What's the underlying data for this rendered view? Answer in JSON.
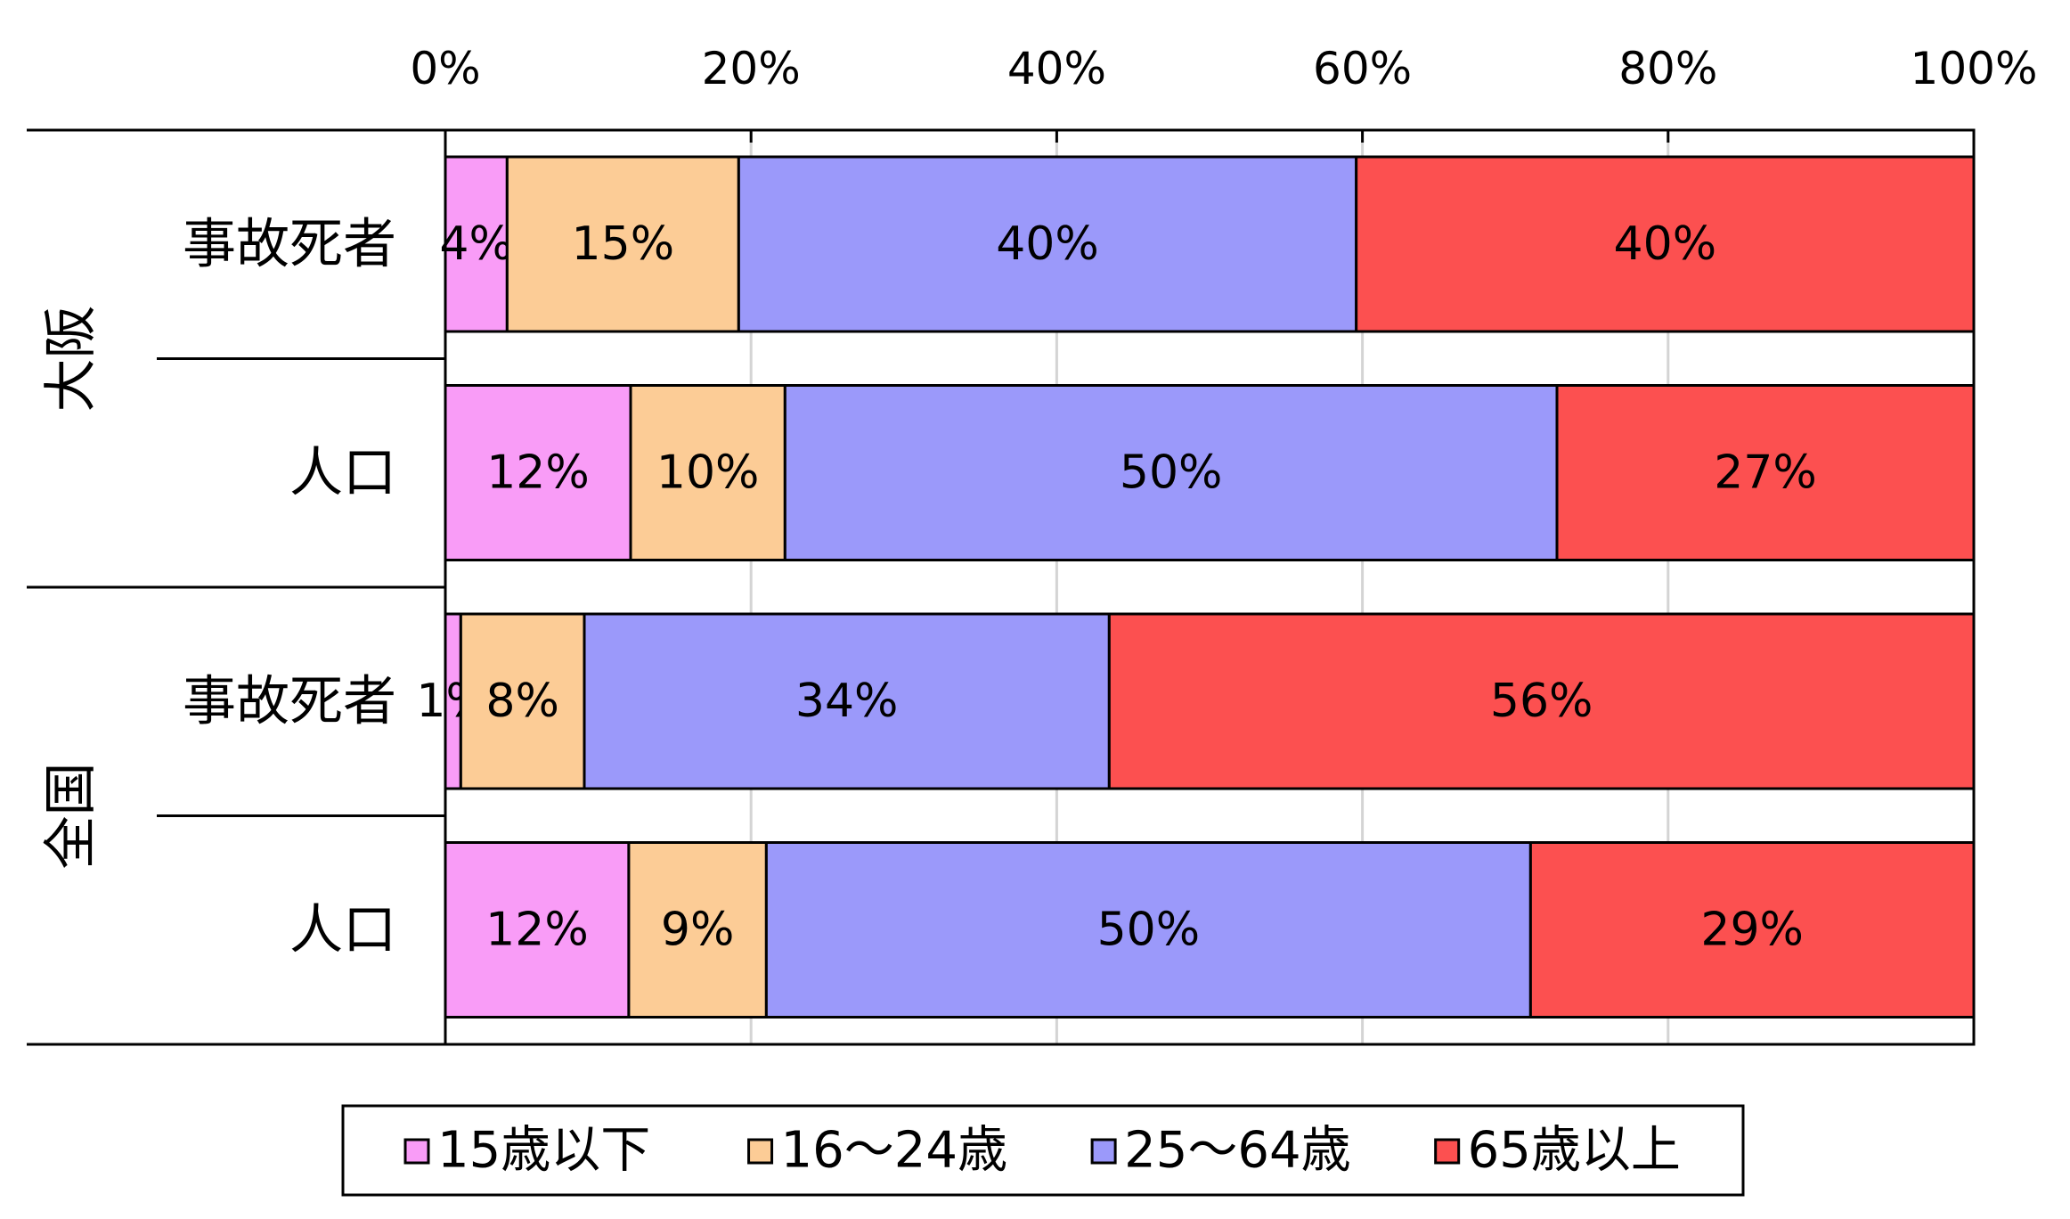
{
  "chart_data": {
    "type": "bar",
    "orientation": "horizontal",
    "stacked": "percent",
    "x_ticks": [
      "0%",
      "20%",
      "40%",
      "60%",
      "80%",
      "100%"
    ],
    "xlim": [
      0,
      100
    ],
    "grid": true,
    "legend_position": "bottom",
    "groups": [
      {
        "name": "大阪",
        "categories": [
          "事故死者",
          "人口"
        ]
      },
      {
        "name": "全国",
        "categories": [
          "事故死者",
          "人口"
        ]
      }
    ],
    "series": [
      {
        "name": "15歳以下",
        "color": "#f99cf7",
        "values": [
          4,
          12,
          1,
          12
        ],
        "labels": [
          "4%",
          "12%",
          "1%",
          "12%"
        ]
      },
      {
        "name": "16～24歳",
        "color": "#fccc96",
        "values": [
          15,
          10,
          8,
          9
        ],
        "labels": [
          "15%",
          "10%",
          "8%",
          "9%"
        ]
      },
      {
        "name": "25～64歳",
        "color": "#9b99fa",
        "values": [
          40,
          50,
          34,
          50
        ],
        "labels": [
          "40%",
          "50%",
          "34%",
          "50%"
        ]
      },
      {
        "name": "65歳以上",
        "color": "#fc5050",
        "values": [
          40,
          27,
          56,
          29
        ],
        "labels": [
          "40%",
          "27%",
          "56%",
          "29%"
        ]
      }
    ]
  }
}
